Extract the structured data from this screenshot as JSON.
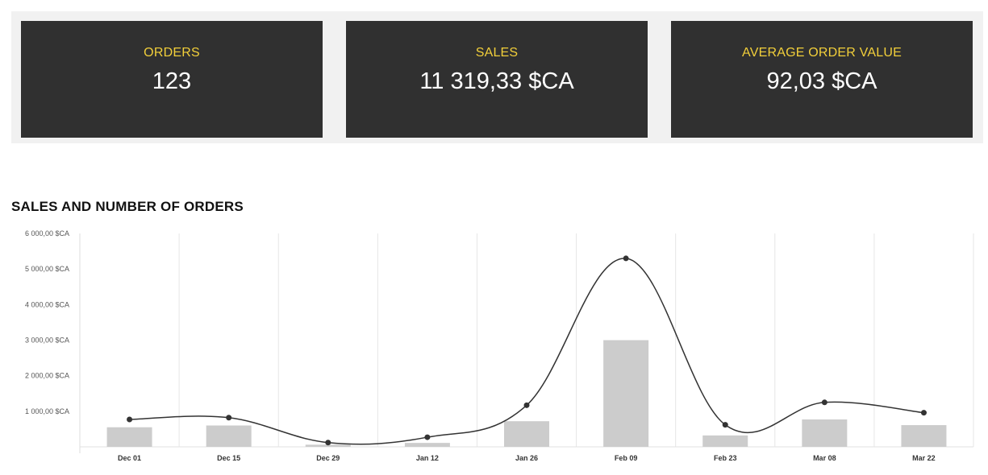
{
  "kpis": [
    {
      "label": "ORDERS",
      "value": "123"
    },
    {
      "label": "SALES",
      "value": "11 319,33 $CA"
    },
    {
      "label": "AVERAGE ORDER VALUE",
      "value": "92,03 $CA"
    }
  ],
  "colors": {
    "kpi_label": "#f2cf3a",
    "kpi_value": "#ffffff",
    "card_bg": "#303030",
    "bar": "#cccccc",
    "line": "#333333"
  },
  "chart_data": {
    "type": "bar",
    "title": "SALES AND NUMBER OF ORDERS",
    "categories": [
      "Dec 01",
      "Dec 15",
      "Dec 29",
      "Jan 12",
      "Jan 26",
      "Feb 09",
      "Feb 23",
      "Mar 08",
      "Mar 22"
    ],
    "series": [
      {
        "type": "bar",
        "values": [
          550,
          600,
          60,
          110,
          720,
          3000,
          320,
          770,
          610
        ]
      },
      {
        "type": "line",
        "values": [
          770,
          820,
          120,
          270,
          1170,
          5300,
          620,
          1250,
          960
        ]
      }
    ],
    "yticks": [
      {
        "value": 1000,
        "label": "1 000,00 $CA"
      },
      {
        "value": 2000,
        "label": "2 000,00 $CA"
      },
      {
        "value": 3000,
        "label": "3 000,00 $CA"
      },
      {
        "value": 4000,
        "label": "4 000,00 $CA"
      },
      {
        "value": 5000,
        "label": "5 000,00 $CA"
      },
      {
        "value": 6000,
        "label": "6 000,00 $CA"
      }
    ],
    "ylim": [
      0,
      6000
    ],
    "grid": "vertical"
  }
}
